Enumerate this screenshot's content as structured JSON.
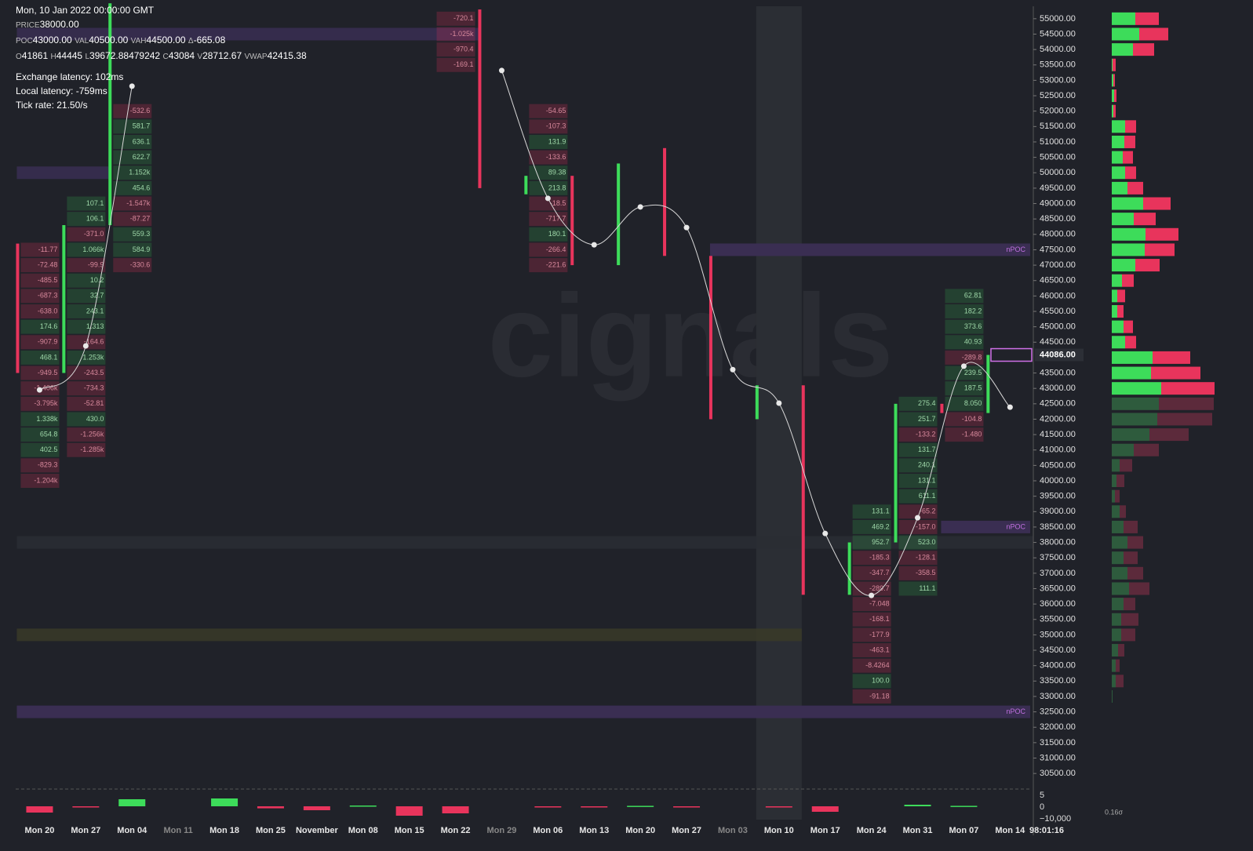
{
  "header": {
    "date": "Mon, 10 Jan 2022 00:00:00 GMT",
    "rows": [
      [
        [
          "PRICE",
          "38000.00"
        ]
      ],
      [
        [
          "POC",
          "43000.00"
        ],
        [
          "VAL",
          "40500.00"
        ],
        [
          "VAH",
          "44500.00"
        ],
        [
          "Δ",
          "-665.08"
        ]
      ],
      [
        [
          "O",
          "41861"
        ],
        [
          "H",
          "44445"
        ],
        [
          "L",
          "39672.88479242"
        ],
        [
          "C",
          "43084"
        ],
        [
          "V",
          "28712.67"
        ],
        [
          "VWAP",
          "42415.38"
        ]
      ]
    ],
    "stats": [
      "Exchange latency: 102ms",
      "Local latency: -759ms",
      "Tick rate: 21.50/s"
    ]
  },
  "chart_data": {
    "type": "candlestick",
    "watermark": "cignals",
    "categories": [
      "Mon 20",
      "Mon 27",
      "Mon 04",
      "Mon 11",
      "Mon 18",
      "Mon 25",
      "November",
      "Mon 08",
      "Mon 15",
      "Mon 22",
      "Mon 29",
      "Mon 06",
      "Mon 13",
      "Mon 20",
      "Mon 27",
      "Mon 03",
      "Mon 10",
      "Mon 17",
      "Mon 24",
      "Mon 31",
      "Mon 07",
      "Mon 14"
    ],
    "dim_categories": [
      3,
      10,
      15
    ],
    "highlight_category": 16,
    "countdown": "98:01:16",
    "up_color": "#3ddc5a",
    "down_color": "#e8345c",
    "open": [
      47700,
      43500,
      48300,
      null,
      null,
      null,
      null,
      null,
      null,
      null,
      55300,
      49300,
      49900,
      47000,
      50800,
      47300,
      42000,
      43100,
      36300,
      38000,
      42500,
      42200
    ],
    "close": [
      43500,
      48300,
      55500,
      null,
      null,
      null,
      null,
      null,
      null,
      null,
      49500,
      49900,
      47000,
      50300,
      47300,
      42000,
      43100,
      36300,
      38000,
      42500,
      42200,
      44086
    ],
    "line": {
      "color": "#d8d8d8",
      "values": [
        42950,
        44380,
        52810,
        null,
        null,
        null,
        null,
        null,
        null,
        null,
        53320,
        49170,
        47660,
        48890,
        48220,
        43610,
        42520,
        38290,
        36280,
        38800,
        43720,
        42390
      ]
    },
    "ylim": [
      30020,
      55480
    ],
    "yticks": [
      {
        "value": 55000,
        "label": "55000.00"
      },
      {
        "value": 54500,
        "label": "54500.00"
      },
      {
        "value": 54000,
        "label": "54000.00"
      },
      {
        "value": 53500,
        "label": "53500.00"
      },
      {
        "value": 53000,
        "label": "53000.00"
      },
      {
        "value": 52500,
        "label": "52500.00"
      },
      {
        "value": 52000,
        "label": "52000.00"
      },
      {
        "value": 51500,
        "label": "51500.00"
      },
      {
        "value": 51000,
        "label": "51000.00"
      },
      {
        "value": 50500,
        "label": "50500.00"
      },
      {
        "value": 50000,
        "label": "50000.00"
      },
      {
        "value": 49500,
        "label": "49500.00"
      },
      {
        "value": 49000,
        "label": "49000.00"
      },
      {
        "value": 48500,
        "label": "48500.00"
      },
      {
        "value": 48000,
        "label": "48000.00"
      },
      {
        "value": 47500,
        "label": "47500.00"
      },
      {
        "value": 47000,
        "label": "47000.00"
      },
      {
        "value": 46500,
        "label": "46500.00"
      },
      {
        "value": 46000,
        "label": "46000.00"
      },
      {
        "value": 45500,
        "label": "45500.00"
      },
      {
        "value": 45000,
        "label": "45000.00"
      },
      {
        "value": 44500,
        "label": "44500.00"
      },
      {
        "value": 43500,
        "label": "43500.00"
      },
      {
        "value": 43000,
        "label": "43000.00"
      },
      {
        "value": 42500,
        "label": "42500.00"
      },
      {
        "value": 42000,
        "label": "42000.00"
      },
      {
        "value": 41500,
        "label": "41500.00"
      },
      {
        "value": 41000,
        "label": "41000.00"
      },
      {
        "value": 40500,
        "label": "40500.00"
      },
      {
        "value": 40000,
        "label": "40000.00"
      },
      {
        "value": 39500,
        "label": "39500.00"
      },
      {
        "value": 39000,
        "label": "39000.00"
      },
      {
        "value": 38500,
        "label": "38500.00"
      },
      {
        "value": 38000,
        "label": "38000.00"
      },
      {
        "value": 37500,
        "label": "37500.00"
      },
      {
        "value": 37000,
        "label": "37000.00"
      },
      {
        "value": 36500,
        "label": "36500.00"
      },
      {
        "value": 36000,
        "label": "36000.00"
      },
      {
        "value": 35500,
        "label": "35500.00"
      },
      {
        "value": 35000,
        "label": "35000.00"
      },
      {
        "value": 34500,
        "label": "34500.00"
      },
      {
        "value": 34000,
        "label": "34000.00"
      },
      {
        "value": 33500,
        "label": "33500.00"
      },
      {
        "value": 33000,
        "label": "33000.00"
      },
      {
        "value": 32500,
        "label": "32500.00"
      },
      {
        "value": 32000,
        "label": "32000.00"
      },
      {
        "value": 31500,
        "label": "31500.00"
      },
      {
        "value": 31000,
        "label": "31000.00"
      },
      {
        "value": 30500,
        "label": "30500.00"
      }
    ],
    "current_price": {
      "value": 44086,
      "label": "44086.00"
    },
    "bands": [
      {
        "price": 54500,
        "from": 0,
        "to": 9,
        "color": "#3a2e52"
      },
      {
        "price": 50000,
        "from": 0,
        "to": 1,
        "color": "#3a2e52"
      },
      {
        "price": 38000,
        "from": 0,
        "to": 21,
        "color": "#2a2d34"
      },
      {
        "price": 35000,
        "from": 0,
        "to": 16,
        "color": "#3a3a28"
      }
    ],
    "npoc": [
      {
        "price": 47500,
        "from": 15,
        "label": "nPOC"
      },
      {
        "price": 38500,
        "from": 20,
        "label": "nPOC"
      },
      {
        "price": 32500,
        "from": 0,
        "label": "nPOC"
      }
    ],
    "footprint": [
      {
        "col": 0,
        "top": 47500,
        "cells": [
          "-11.77",
          "-72.48",
          "-485.5",
          "-687.3",
          "-638.0",
          "174.6",
          "-907.9",
          "468.1",
          "-949.5",
          "-1.406k",
          "-3.795k",
          "1.338k",
          "654.8",
          "402.5",
          "-829.3",
          "-1.204k"
        ]
      },
      {
        "col": 1,
        "top": 49000,
        "cells": [
          "107.1",
          "106.1",
          "-371.0",
          "1.066k",
          "-99.9",
          "10.2",
          "32.7",
          "243.1",
          "1.313",
          "-164.6",
          "1.253k",
          "-243.5",
          "-734.3",
          "-52.81",
          "430.0",
          "-1.256k",
          "-1.285k"
        ]
      },
      {
        "col": 2,
        "top": 52000,
        "cells": [
          "-532.6",
          "581.7",
          "636.1",
          "622.7",
          "1.152k",
          "454.6",
          "-1.547k",
          "-87.27",
          "559.3",
          "584.9",
          "-330.6"
        ]
      },
      {
        "col": 9,
        "top": 55000,
        "cells": [
          "-720.1",
          "-1.025k",
          "-970.4",
          "-169.1"
        ]
      },
      {
        "col": 11,
        "top": 52000,
        "cells": [
          "-54.65",
          "-107.3",
          "131.9",
          "-133.6",
          "89.38",
          "213.8",
          "-18.5",
          "-717.7",
          "180.1",
          "-266.4",
          "-221.6"
        ]
      },
      {
        "col": 18,
        "top": 39000,
        "cells": [
          "131.1",
          "469.2",
          "952.7",
          "-185.3",
          "-347.7",
          "-289.7",
          "-7.048",
          "-168.1",
          "-177.9",
          "-463.1",
          "-8.4264",
          "100.0",
          "-91.18"
        ]
      },
      {
        "col": 19,
        "top": 42500,
        "cells": [
          "275.4",
          "251.7",
          "-133.2",
          "131.7",
          "240.1",
          "131.1",
          "611.1",
          "-65.2",
          "-157.0",
          "523.0",
          "-128.1",
          "-358.5",
          "111.1"
        ]
      },
      {
        "col": 20,
        "top": 46000,
        "cells": [
          "62.81",
          "182.2",
          "373.6",
          "40.93",
          "-289.8",
          "239.5",
          "187.5",
          "8.050",
          "-104.8",
          "-1.480"
        ]
      }
    ],
    "profile": {
      "levels": [
        55000,
        54500,
        54000,
        53500,
        53000,
        52500,
        52000,
        51500,
        51000,
        50500,
        50000,
        49500,
        49000,
        48500,
        48000,
        47500,
        47000,
        46500,
        46000,
        45500,
        45000,
        44500,
        44000,
        43500,
        43000,
        42500,
        42000,
        41500,
        41000,
        40500,
        40000,
        39500,
        39000,
        38500,
        38000,
        37500,
        37000,
        36500,
        36000,
        35500,
        35000,
        34500,
        34000,
        33500,
        33000
      ],
      "buy": [
        30,
        35,
        27,
        1,
        2,
        3,
        2,
        17,
        16,
        14,
        17,
        20,
        40,
        28,
        43,
        42,
        30,
        13,
        7,
        7,
        15,
        17,
        52,
        50,
        63,
        60,
        58,
        48,
        28,
        10,
        6,
        4,
        10,
        15,
        20,
        15,
        20,
        22,
        15,
        12,
        12,
        8,
        5,
        5,
        1
      ],
      "sell": [
        30,
        37,
        27,
        4,
        2,
        3,
        3,
        14,
        14,
        13,
        14,
        20,
        35,
        28,
        42,
        38,
        31,
        15,
        10,
        8,
        12,
        14,
        48,
        63,
        68,
        70,
        70,
        50,
        32,
        16,
        10,
        6,
        8,
        18,
        20,
        18,
        20,
        26,
        15,
        22,
        18,
        8,
        5,
        10,
        0
      ],
      "value_area_low": 42500,
      "colors": {
        "buy": "#3ddc5a",
        "sell": "#e8345c",
        "buy_dim": "#2e5b3d",
        "sell_dim": "#5c2a3b"
      },
      "sigma_label": "0.16σ"
    },
    "delta": {
      "values": [
        -4,
        -0.3,
        4.5,
        null,
        5,
        -1.3,
        -2.5,
        0.5,
        -6,
        -4.5,
        null,
        -0.3,
        -0.3,
        0.3,
        -0.5,
        null,
        -0.3,
        -3.5,
        null,
        1,
        0.3,
        null
      ],
      "ylim": [
        -8.5,
        8.5
      ],
      "axis_labels": [
        "5",
        "0",
        "−10,000"
      ]
    }
  }
}
